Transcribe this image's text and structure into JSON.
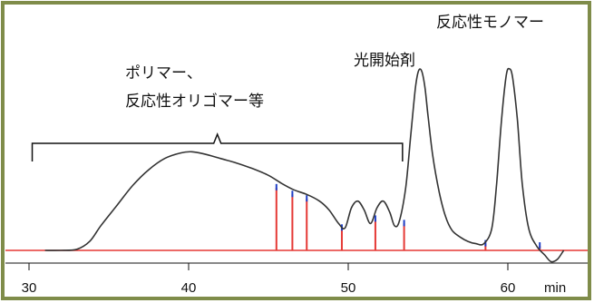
{
  "chart_data": {
    "type": "line",
    "title": "",
    "xlabel": "",
    "ylabel": "",
    "x_unit": "min",
    "xlim": [
      30,
      63.5
    ],
    "x_ticks": [
      30,
      40,
      50,
      60
    ],
    "grid": false,
    "legend": "none",
    "colors": {
      "frame": "#7f8c4a",
      "trace": "#333333",
      "baseline": "#e53935",
      "cut": "#e53935",
      "cut_mark": "#1e40c8"
    },
    "trace": {
      "x": [
        31.0,
        32.0,
        33.0,
        33.8,
        34.5,
        35.5,
        36.5,
        37.5,
        38.5,
        39.5,
        40.2,
        41.0,
        42.0,
        43.0,
        44.0,
        45.0,
        45.8,
        46.6,
        47.4,
        48.2,
        48.8,
        49.4,
        49.8,
        50.2,
        50.6,
        51.0,
        51.4,
        51.8,
        52.2,
        52.6,
        52.9,
        53.2,
        53.6,
        53.9,
        54.2,
        54.4,
        54.6,
        54.8,
        55.0,
        55.3,
        55.7,
        56.1,
        56.5,
        57.0,
        57.5,
        58.0,
        58.5,
        59.0,
        59.3,
        59.6,
        59.9,
        60.1,
        60.3,
        60.6,
        60.9,
        61.3,
        61.8,
        62.3,
        62.7,
        63.1,
        63.5
      ],
      "y": [
        0.0,
        0.0,
        0.005,
        0.04,
        0.11,
        0.2,
        0.29,
        0.36,
        0.41,
        0.435,
        0.44,
        0.43,
        0.41,
        0.39,
        0.365,
        0.335,
        0.3,
        0.27,
        0.25,
        0.22,
        0.18,
        0.12,
        0.1,
        0.19,
        0.22,
        0.18,
        0.12,
        0.19,
        0.22,
        0.17,
        0.11,
        0.13,
        0.28,
        0.5,
        0.72,
        0.8,
        0.8,
        0.73,
        0.6,
        0.42,
        0.26,
        0.15,
        0.09,
        0.06,
        0.04,
        0.03,
        0.03,
        0.1,
        0.3,
        0.58,
        0.78,
        0.81,
        0.77,
        0.58,
        0.3,
        0.1,
        0.02,
        -0.02,
        -0.05,
        -0.04,
        0.0
      ]
    },
    "cuts": [
      {
        "x": 45.5,
        "y": 0.28
      },
      {
        "x": 46.5,
        "y": 0.25
      },
      {
        "x": 47.4,
        "y": 0.23
      },
      {
        "x": 49.6,
        "y": 0.1
      },
      {
        "x": 51.7,
        "y": 0.14
      },
      {
        "x": 53.5,
        "y": 0.12
      },
      {
        "x": 58.6,
        "y": 0.03
      },
      {
        "x": 62.0,
        "y": 0.02
      }
    ],
    "annotations": {
      "polymer_line1": "ポリマー、",
      "polymer_line2": "反応性オリゴマー等",
      "photoinitiator": "光開始剤",
      "monomer": "反応性モノマー"
    },
    "bracket": {
      "x_start": 30.2,
      "x_end": 53.4
    }
  }
}
